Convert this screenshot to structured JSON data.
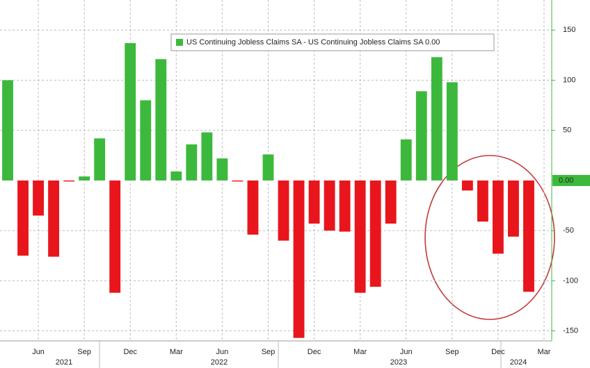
{
  "chart_data": {
    "type": "bar",
    "legend": "US Continuing Jobless Claims SA - US Continuing Jobless Claims SA 0.00",
    "categories": [
      null,
      null,
      "Jun",
      null,
      null,
      "Sep",
      null,
      null,
      "Dec",
      null,
      null,
      "Mar",
      null,
      null,
      "Jun",
      null,
      null,
      "Sep",
      null,
      null,
      "Dec",
      null,
      null,
      "Mar",
      null,
      null,
      "Jun",
      null,
      null,
      "Sep",
      null,
      null,
      "Dec",
      null,
      null,
      "Mar"
    ],
    "year_labels": [
      "2021",
      "2022",
      "2023",
      "2024"
    ],
    "series": [
      {
        "name": "US Continuing Jobless Claims SA - US Continuing Jobless Claims SA",
        "color": "#3cb93c",
        "negative_color": "#e8161c",
        "values": [
          100,
          -75,
          -35,
          -76,
          -1,
          4,
          42,
          -112,
          137,
          80,
          121,
          9,
          36,
          48,
          22,
          -1,
          -54,
          26,
          -60,
          -157,
          -43,
          -50,
          -51,
          -112,
          -106,
          -43,
          41,
          89,
          123,
          98,
          -10,
          -41,
          -73,
          -56,
          -111,
          null
        ]
      }
    ],
    "ylim": [
      -160,
      180
    ],
    "yticks": [
      150,
      100,
      50,
      {
        "value": 0,
        "label": "0.00"
      },
      -50,
      -100,
      -150
    ],
    "grid": true
  }
}
